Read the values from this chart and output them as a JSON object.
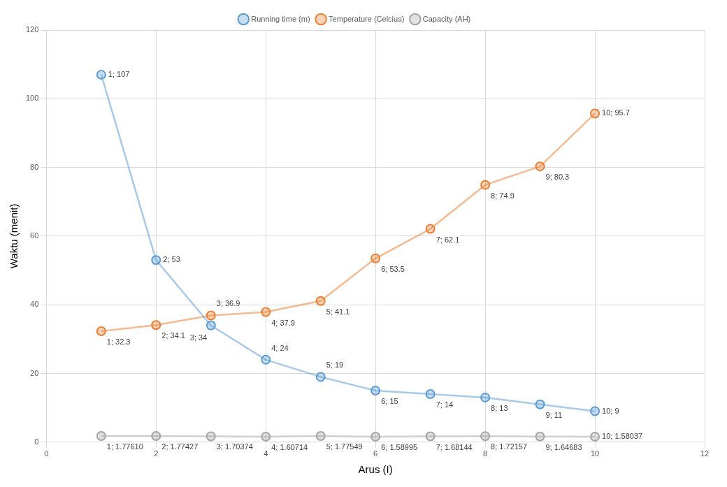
{
  "chart_data": {
    "type": "line",
    "xlabel": "Arus (I)",
    "ylabel": "Waktu (menit)",
    "x": [
      1,
      2,
      3,
      4,
      5,
      6,
      7,
      8,
      9,
      10
    ],
    "xlim": [
      0,
      12
    ],
    "xticks": [
      0,
      2,
      4,
      6,
      8,
      10,
      12
    ],
    "ylim": [
      0,
      120
    ],
    "yticks": [
      0,
      20,
      40,
      60,
      80,
      100,
      120
    ],
    "grid": true,
    "legend": "top",
    "marker": "circle",
    "line_style": "solid",
    "series": [
      {
        "name": "Running time (m)",
        "color": "#5b9bd5",
        "values": [
          107,
          53,
          34,
          24,
          19,
          15,
          14,
          13,
          11,
          9
        ],
        "value_labels": [
          "1; 107",
          "2; 53",
          "3; 34",
          "4; 24",
          "5; 19",
          "6; 15",
          "7; 14",
          "8; 13",
          "9; 11",
          "10; 9"
        ]
      },
      {
        "name": "Temperature (Celcius)",
        "color": "#ed7d31",
        "values": [
          32.3,
          34.1,
          36.9,
          37.9,
          41.1,
          53.5,
          62.1,
          74.9,
          80.3,
          95.7
        ],
        "value_labels": [
          "1; 32.3",
          "2; 34.1",
          "3; 36.9",
          "4; 37.9",
          "5; 41.1",
          "6; 53.5",
          "7; 62.1",
          "8; 74.9",
          "9; 80.3",
          "10; 95.7"
        ]
      },
      {
        "name": "Capacity (AH)",
        "color": "#a5a5a5",
        "values": [
          1.7761,
          1.77427,
          1.70374,
          1.60714,
          1.77549,
          1.58995,
          1.68144,
          1.72157,
          1.64683,
          1.58037
        ],
        "value_labels": [
          "1; 1.77610",
          "2; 1.77427",
          "3; 1.70374",
          "4; 1.60714",
          "5; 1.77549",
          "6; 1.58995",
          "7; 1.68144",
          "8; 1.72157",
          "9; 1.64683",
          "10; 1.58037"
        ]
      }
    ]
  }
}
